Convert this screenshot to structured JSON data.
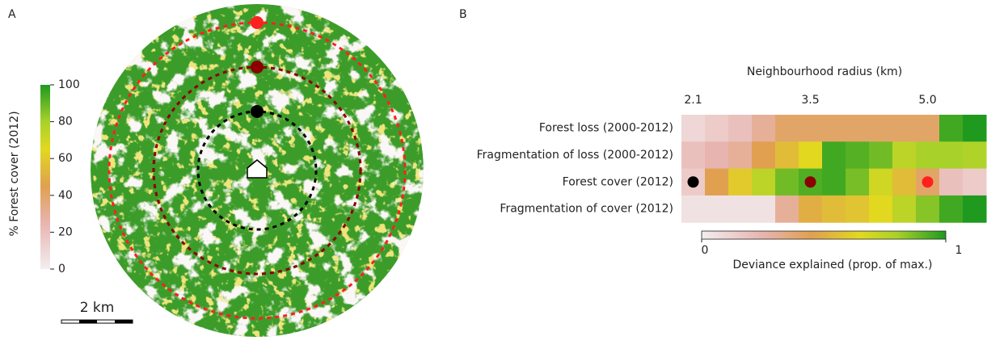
{
  "chart_data": [
    {
      "type": "map",
      "panel": "A",
      "colorbar": {
        "title": "% Forest cover (2012)",
        "lim": [
          0,
          100
        ],
        "ticks": [
          0,
          20,
          40,
          60,
          80,
          100
        ]
      },
      "scale_bar": "2 km",
      "rings": [
        {
          "color": "#000000"
        },
        {
          "color": "#8b0000"
        },
        {
          "color": "#ff2020"
        }
      ]
    },
    {
      "type": "heatmap",
      "panel": "B",
      "x_label": "Neighbourhood radius (km)",
      "categories": [
        "2.1",
        null,
        null,
        null,
        null,
        "3.5",
        null,
        null,
        null,
        null,
        "5.0",
        null,
        null
      ],
      "rows": [
        "Forest loss (2000-2012)",
        "Fragmentation of loss (2000-2012)",
        "Forest cover (2012)",
        "Fragmentation of cover (2012)"
      ],
      "values": [
        [
          0.1,
          0.15,
          0.2,
          0.3,
          0.4,
          0.4,
          0.4,
          0.4,
          0.4,
          0.4,
          0.4,
          0.95,
          1.0
        ],
        [
          0.2,
          0.25,
          0.3,
          0.45,
          0.55,
          0.65,
          0.95,
          0.92,
          0.88,
          0.75,
          0.8,
          0.8,
          0.78
        ],
        [
          0.15,
          0.45,
          0.6,
          0.75,
          0.88,
          0.93,
          0.95,
          0.87,
          0.7,
          0.55,
          0.4,
          0.2,
          0.15
        ],
        [
          0.05,
          0.05,
          0.05,
          0.05,
          0.3,
          0.5,
          0.55,
          0.58,
          0.65,
          0.75,
          0.85,
          0.95,
          1.0
        ]
      ],
      "markers": [
        {
          "row": 2,
          "col": 0,
          "color": "#000000"
        },
        {
          "row": 2,
          "col": 5,
          "color": "#8b0000"
        },
        {
          "row": 2,
          "col": 10,
          "color": "#ff2020"
        }
      ],
      "colorbar": {
        "title": "Deviance explained (prop. of max.)",
        "lim": [
          0,
          1
        ],
        "ticks": [
          0,
          1
        ]
      }
    }
  ]
}
